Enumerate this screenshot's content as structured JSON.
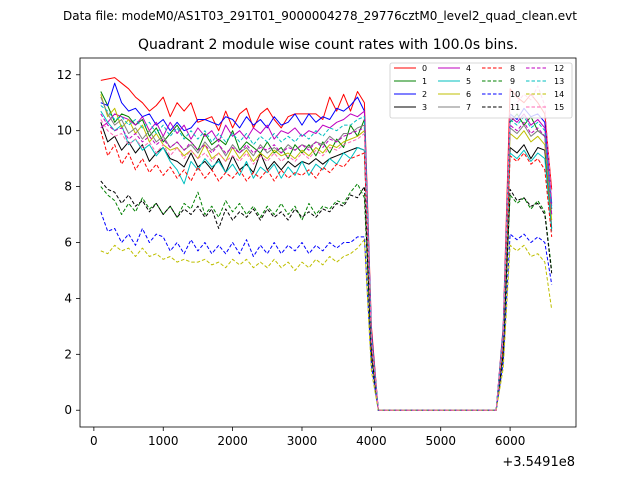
{
  "figure": {
    "suptitle": "Data file: modeM0/AS1T03_291T01_9000004278_29776cztM0_level2_quad_clean.evt",
    "offset_label": "+3.5491e8"
  },
  "chart_data": {
    "type": "line",
    "title": "Quadrant 2 module wise count rates with 100.0s bins.",
    "xlabel": "",
    "ylabel": "",
    "xlim": [
      -200,
      6950
    ],
    "ylim": [
      -0.6,
      12.6
    ],
    "x_ticks": [
      0,
      1000,
      2000,
      3000,
      4000,
      5000,
      6000
    ],
    "y_ticks": [
      0,
      2,
      4,
      6,
      8,
      10,
      12
    ],
    "grid": false,
    "legend_position": "top-right",
    "x": [
      100,
      200,
      300,
      400,
      500,
      600,
      700,
      800,
      900,
      1000,
      1100,
      1200,
      1300,
      1400,
      1500,
      1600,
      1700,
      1800,
      1900,
      2000,
      2100,
      2200,
      2300,
      2400,
      2500,
      2600,
      2700,
      2800,
      2900,
      3000,
      3100,
      3200,
      3300,
      3400,
      3500,
      3600,
      3700,
      3800,
      3900,
      4000,
      4100,
      4200,
      4300,
      4400,
      4500,
      4600,
      4700,
      4800,
      4900,
      5000,
      5100,
      5200,
      5300,
      5400,
      5500,
      5600,
      5700,
      5800,
      5900,
      6000,
      6100,
      6200,
      6300,
      6400,
      6500,
      6600
    ],
    "series": [
      {
        "name": "0",
        "color": "#ff0000",
        "dash": "solid",
        "values": [
          11.8,
          11.85,
          11.9,
          11.7,
          11.5,
          11.2,
          11.0,
          10.7,
          10.9,
          11.2,
          10.5,
          11.0,
          10.7,
          11.0,
          10.3,
          10.4,
          10.5,
          10.0,
          10.7,
          10.1,
          10.6,
          10.8,
          10.1,
          10.6,
          10.8,
          10.4,
          10.1,
          10.5,
          10.6,
          10.6,
          10.6,
          10.6,
          10.4,
          11.2,
          10.7,
          11.3,
          10.7,
          11.4,
          11.0,
          3.0,
          0.0,
          0.0,
          0.0,
          0.0,
          0.0,
          0.0,
          0.0,
          0.0,
          0.0,
          0.0,
          0.0,
          0.0,
          0.0,
          0.0,
          0.0,
          0.0,
          0.0,
          0.0,
          3.0,
          11.5,
          11.2,
          11.0,
          11.3,
          11.0,
          10.6,
          7.9
        ]
      },
      {
        "name": "1",
        "color": "#008000",
        "dash": "solid",
        "values": [
          11.4,
          10.9,
          10.3,
          10.6,
          10.5,
          10.2,
          10.4,
          9.8,
          10.1,
          9.6,
          9.9,
          10.2,
          9.8,
          9.6,
          9.3,
          9.9,
          9.5,
          9.7,
          9.5,
          10.0,
          9.3,
          9.6,
          9.4,
          9.2,
          9.6,
          9.2,
          9.4,
          9.0,
          9.5,
          9.2,
          9.5,
          9.1,
          9.6,
          9.2,
          9.7,
          9.4,
          10.2,
          9.8,
          10.4,
          2.6,
          0.0,
          0.0,
          0.0,
          0.0,
          0.0,
          0.0,
          0.0,
          0.0,
          0.0,
          0.0,
          0.0,
          0.0,
          0.0,
          0.0,
          0.0,
          0.0,
          0.0,
          0.0,
          2.8,
          10.3,
          10.6,
          10.2,
          10.5,
          10.0,
          9.8,
          7.2
        ]
      },
      {
        "name": "2",
        "color": "#0000ff",
        "dash": "solid",
        "values": [
          11.0,
          10.9,
          11.7,
          11.0,
          10.7,
          10.8,
          10.5,
          10.6,
          10.2,
          10.4,
          10.0,
          10.3,
          10.0,
          10.1,
          10.4,
          10.4,
          10.3,
          10.2,
          10.5,
          10.4,
          10.1,
          10.5,
          10.2,
          10.4,
          10.1,
          10.5,
          10.2,
          10.3,
          10.6,
          10.2,
          10.6,
          10.3,
          10.5,
          10.4,
          10.8,
          10.7,
          10.9,
          11.2,
          10.7,
          2.8,
          0.0,
          0.0,
          0.0,
          0.0,
          0.0,
          0.0,
          0.0,
          0.0,
          0.0,
          0.0,
          0.0,
          0.0,
          0.0,
          0.0,
          0.0,
          0.0,
          0.0,
          0.0,
          2.9,
          10.6,
          10.4,
          10.8,
          10.5,
          10.6,
          10.3,
          7.4
        ]
      },
      {
        "name": "3",
        "color": "#000000",
        "dash": "solid",
        "values": [
          10.3,
          9.6,
          9.8,
          9.3,
          9.6,
          9.2,
          9.5,
          8.9,
          9.2,
          9.4,
          9.0,
          8.9,
          8.7,
          9.2,
          8.7,
          8.9,
          8.6,
          9.0,
          8.5,
          9.1,
          8.6,
          8.8,
          8.5,
          9.2,
          8.6,
          8.9,
          8.6,
          8.9,
          8.7,
          8.9,
          8.8,
          9.0,
          8.8,
          9.0,
          9.1,
          9.2,
          9.3,
          9.4,
          9.3,
          2.4,
          0.0,
          0.0,
          0.0,
          0.0,
          0.0,
          0.0,
          0.0,
          0.0,
          0.0,
          0.0,
          0.0,
          0.0,
          0.0,
          0.0,
          0.0,
          0.0,
          0.0,
          0.0,
          2.4,
          9.4,
          9.2,
          9.5,
          9.0,
          9.4,
          9.3,
          6.5
        ]
      },
      {
        "name": "4",
        "color": "#bf00bf",
        "dash": "solid",
        "values": [
          10.1,
          10.3,
          10.6,
          10.5,
          10.4,
          10.2,
          10.5,
          10.0,
          10.3,
          9.8,
          10.3,
          9.9,
          10.2,
          9.7,
          10.1,
          9.8,
          10.0,
          9.6,
          10.2,
          9.8,
          10.0,
          9.7,
          10.1,
          9.9,
          10.2,
          9.7,
          10.0,
          9.9,
          10.1,
          9.8,
          10.0,
          9.9,
          10.2,
          10.1,
          10.3,
          10.4,
          10.6,
          10.5,
          10.7,
          2.7,
          0.0,
          0.0,
          0.0,
          0.0,
          0.0,
          0.0,
          0.0,
          0.0,
          0.0,
          0.0,
          0.0,
          0.0,
          0.0,
          0.0,
          0.0,
          0.0,
          0.0,
          0.0,
          2.8,
          10.5,
          10.3,
          10.6,
          10.2,
          10.4,
          10.1,
          7.3
        ]
      },
      {
        "name": "5",
        "color": "#00bfbf",
        "dash": "solid",
        "values": [
          10.7,
          10.3,
          10.0,
          10.2,
          9.5,
          9.7,
          9.3,
          9.5,
          9.1,
          9.4,
          8.9,
          8.6,
          8.1,
          8.9,
          8.6,
          9.0,
          8.7,
          8.9,
          8.5,
          8.8,
          8.4,
          8.9,
          8.3,
          8.7,
          8.5,
          8.8,
          8.3,
          8.7,
          8.4,
          8.9,
          8.4,
          8.8,
          8.6,
          9.0,
          8.8,
          9.2,
          9.0,
          9.4,
          9.3,
          2.3,
          0.0,
          0.0,
          0.0,
          0.0,
          0.0,
          0.0,
          0.0,
          0.0,
          0.0,
          0.0,
          0.0,
          0.0,
          0.0,
          0.0,
          0.0,
          0.0,
          0.0,
          0.0,
          2.4,
          9.2,
          9.0,
          9.3,
          8.9,
          9.2,
          9.0,
          6.4
        ]
      },
      {
        "name": "6",
        "color": "#bfbf00",
        "dash": "solid",
        "values": [
          11.3,
          10.5,
          10.8,
          10.1,
          10.4,
          9.9,
          10.2,
          9.6,
          9.9,
          9.5,
          9.3,
          9.4,
          9.1,
          9.3,
          9.0,
          9.5,
          9.0,
          9.2,
          8.9,
          9.4,
          9.0,
          9.3,
          8.9,
          9.2,
          9.0,
          9.3,
          9.1,
          9.2,
          9.0,
          9.3,
          9.1,
          9.4,
          9.2,
          9.5,
          9.4,
          9.6,
          9.7,
          9.8,
          10.0,
          2.5,
          0.0,
          0.0,
          0.0,
          0.0,
          0.0,
          0.0,
          0.0,
          0.0,
          0.0,
          0.0,
          0.0,
          0.0,
          0.0,
          0.0,
          0.0,
          0.0,
          0.0,
          0.0,
          2.6,
          9.9,
          9.7,
          10.0,
          9.6,
          9.8,
          9.5,
          6.8
        ]
      },
      {
        "name": "7",
        "color": "#808080",
        "dash": "solid",
        "values": [
          11.2,
          10.6,
          10.2,
          10.4,
          9.9,
          10.1,
          9.7,
          10.0,
          9.6,
          9.8,
          9.4,
          9.6,
          9.3,
          9.5,
          9.2,
          9.6,
          9.3,
          9.5,
          9.1,
          9.5,
          9.2,
          9.4,
          9.1,
          9.5,
          9.2,
          9.4,
          9.2,
          9.5,
          9.3,
          9.5,
          9.4,
          9.6,
          9.5,
          9.8,
          9.6,
          9.9,
          9.9,
          10.1,
          10.2,
          2.6,
          0.0,
          0.0,
          0.0,
          0.0,
          0.0,
          0.0,
          0.0,
          0.0,
          0.0,
          0.0,
          0.0,
          0.0,
          0.0,
          0.0,
          0.0,
          0.0,
          0.0,
          0.0,
          2.7,
          10.1,
          9.9,
          10.2,
          9.8,
          10.0,
          9.8,
          7.0
        ]
      },
      {
        "name": "8",
        "color": "#ff0000",
        "dash": "dashed",
        "values": [
          10.0,
          9.1,
          9.5,
          8.8,
          9.2,
          8.6,
          9.0,
          8.5,
          8.8,
          8.4,
          8.7,
          8.3,
          8.6,
          8.2,
          8.7,
          8.3,
          8.6,
          8.2,
          8.5,
          8.3,
          8.6,
          8.2,
          8.5,
          8.3,
          8.6,
          8.2,
          8.6,
          8.3,
          8.5,
          8.4,
          8.6,
          8.3,
          8.7,
          8.5,
          8.8,
          8.7,
          9.0,
          9.1,
          9.2,
          2.3,
          0.0,
          0.0,
          0.0,
          0.0,
          0.0,
          0.0,
          0.0,
          0.0,
          0.0,
          0.0,
          0.0,
          0.0,
          0.0,
          0.0,
          0.0,
          0.0,
          0.0,
          0.0,
          2.3,
          9.1,
          8.9,
          9.2,
          8.8,
          9.0,
          8.6,
          6.2
        ]
      },
      {
        "name": "9",
        "color": "#008000",
        "dash": "dashed",
        "values": [
          8.0,
          7.7,
          7.5,
          7.0,
          7.4,
          7.1,
          7.6,
          7.2,
          7.4,
          7.0,
          7.3,
          6.9,
          7.4,
          7.2,
          7.8,
          7.0,
          7.3,
          6.9,
          7.5,
          7.1,
          7.4,
          7.0,
          7.3,
          6.9,
          7.3,
          7.0,
          7.4,
          7.0,
          7.3,
          6.8,
          7.4,
          7.0,
          7.3,
          7.2,
          7.5,
          7.4,
          7.8,
          8.1,
          7.6,
          1.9,
          0.0,
          0.0,
          0.0,
          0.0,
          0.0,
          0.0,
          0.0,
          0.0,
          0.0,
          0.0,
          0.0,
          0.0,
          0.0,
          0.0,
          0.0,
          0.0,
          0.0,
          0.0,
          2.0,
          7.7,
          7.4,
          7.6,
          7.2,
          7.5,
          7.1,
          5.0
        ]
      },
      {
        "name": "10",
        "color": "#0000ff",
        "dash": "dashed",
        "values": [
          7.1,
          6.4,
          6.5,
          6.0,
          6.3,
          5.9,
          6.5,
          6.0,
          6.3,
          6.2,
          5.7,
          6.0,
          5.6,
          6.1,
          5.7,
          6.0,
          5.6,
          5.9,
          5.6,
          6.0,
          5.6,
          6.1,
          5.5,
          5.9,
          5.6,
          6.0,
          5.6,
          5.9,
          5.7,
          6.0,
          5.6,
          5.9,
          5.7,
          6.0,
          5.8,
          6.0,
          6.0,
          6.2,
          6.2,
          1.6,
          0.0,
          0.0,
          0.0,
          0.0,
          0.0,
          0.0,
          0.0,
          0.0,
          0.0,
          0.0,
          0.0,
          0.0,
          0.0,
          0.0,
          0.0,
          0.0,
          0.0,
          0.0,
          1.7,
          6.3,
          6.1,
          6.3,
          6.0,
          6.2,
          6.0,
          4.5
        ]
      },
      {
        "name": "11",
        "color": "#000000",
        "dash": "dashed",
        "values": [
          8.2,
          7.9,
          7.8,
          7.4,
          7.7,
          7.3,
          7.5,
          7.1,
          7.4,
          7.0,
          7.3,
          6.9,
          7.2,
          7.0,
          7.3,
          6.9,
          7.2,
          6.5,
          7.2,
          6.8,
          7.1,
          6.9,
          7.2,
          6.8,
          7.2,
          6.9,
          7.1,
          6.8,
          7.2,
          6.9,
          7.1,
          6.9,
          7.2,
          7.1,
          7.4,
          7.3,
          7.7,
          7.6,
          8.0,
          2.0,
          0.0,
          0.0,
          0.0,
          0.0,
          0.0,
          0.0,
          0.0,
          0.0,
          0.0,
          0.0,
          0.0,
          0.0,
          0.0,
          0.0,
          0.0,
          0.0,
          0.0,
          0.0,
          2.0,
          7.9,
          7.5,
          7.6,
          7.3,
          7.4,
          7.0,
          4.9
        ]
      },
      {
        "name": "12",
        "color": "#bf00bf",
        "dash": "dashed",
        "values": [
          10.6,
          10.2,
          10.0,
          10.1,
          9.7,
          9.9,
          9.6,
          9.8,
          9.5,
          9.7,
          9.4,
          9.6,
          9.3,
          9.6,
          9.3,
          9.5,
          9.2,
          9.5,
          9.2,
          9.4,
          9.2,
          9.5,
          9.2,
          9.4,
          9.3,
          9.5,
          9.2,
          9.4,
          9.3,
          9.5,
          9.3,
          9.6,
          9.4,
          9.7,
          9.6,
          9.8,
          9.9,
          10.0,
          10.1,
          2.6,
          0.0,
          0.0,
          0.0,
          0.0,
          0.0,
          0.0,
          0.0,
          0.0,
          0.0,
          0.0,
          0.0,
          0.0,
          0.0,
          0.0,
          0.0,
          0.0,
          0.0,
          0.0,
          2.7,
          10.2,
          10.0,
          10.3,
          9.9,
          10.1,
          9.8,
          7.0
        ]
      },
      {
        "name": "13",
        "color": "#00bfbf",
        "dash": "dashed",
        "values": [
          10.9,
          10.7,
          10.4,
          10.5,
          10.2,
          10.4,
          10.1,
          10.3,
          9.9,
          10.2,
          9.8,
          10.1,
          9.7,
          10.0,
          9.7,
          10.0,
          9.6,
          9.9,
          9.6,
          9.9,
          9.6,
          9.9,
          9.5,
          9.8,
          9.6,
          9.9,
          9.6,
          9.8,
          9.6,
          9.9,
          9.7,
          10.0,
          9.8,
          10.1,
          10.0,
          10.2,
          10.2,
          10.4,
          10.5,
          2.7,
          0.0,
          0.0,
          0.0,
          0.0,
          0.0,
          0.0,
          0.0,
          0.0,
          0.0,
          0.0,
          0.0,
          0.0,
          0.0,
          0.0,
          0.0,
          0.0,
          0.0,
          0.0,
          2.8,
          10.4,
          10.2,
          10.5,
          10.1,
          10.3,
          10.0,
          7.2
        ]
      },
      {
        "name": "14",
        "color": "#bfbf00",
        "dash": "dashed",
        "values": [
          5.7,
          5.6,
          5.9,
          5.7,
          5.8,
          5.5,
          5.8,
          5.5,
          5.6,
          5.4,
          5.5,
          5.3,
          5.4,
          5.3,
          5.3,
          5.4,
          5.2,
          5.3,
          5.1,
          5.4,
          5.2,
          5.4,
          5.1,
          5.3,
          5.1,
          5.4,
          5.1,
          5.3,
          5.0,
          5.3,
          5.1,
          5.4,
          5.2,
          5.5,
          5.3,
          5.5,
          5.6,
          5.8,
          6.1,
          1.4,
          0.0,
          0.0,
          0.0,
          0.0,
          0.0,
          0.0,
          0.0,
          0.0,
          0.0,
          0.0,
          0.0,
          0.0,
          0.0,
          0.0,
          0.0,
          0.0,
          0.0,
          0.0,
          1.5,
          5.9,
          5.7,
          5.9,
          5.5,
          5.6,
          5.3,
          3.6
        ]
      },
      {
        "name": "15",
        "color": "#ff69b4",
        "dash": "dashed",
        "values": [
          10.4,
          10.0,
          9.8,
          9.9,
          9.5,
          9.7,
          9.4,
          9.6,
          9.2,
          9.5,
          9.1,
          9.4,
          9.0,
          9.3,
          9.0,
          9.2,
          8.9,
          9.2,
          8.9,
          9.1,
          8.9,
          9.2,
          8.8,
          9.1,
          8.9,
          9.2,
          8.9,
          9.1,
          8.9,
          9.2,
          9.0,
          9.3,
          9.1,
          9.4,
          9.3,
          9.5,
          9.6,
          9.7,
          9.9,
          2.5,
          0.0,
          0.0,
          0.0,
          0.0,
          0.0,
          0.0,
          0.0,
          0.0,
          0.0,
          0.0,
          0.0,
          0.0,
          0.0,
          0.0,
          0.0,
          0.0,
          0.0,
          0.0,
          2.6,
          10.8,
          11.0,
          11.3,
          11.1,
          11.6,
          10.9,
          7.6
        ]
      }
    ]
  }
}
